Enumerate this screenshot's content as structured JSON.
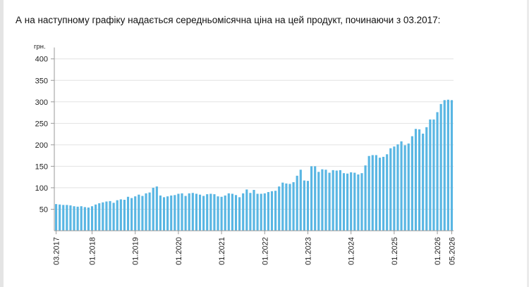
{
  "intro_text": "А на наступному графіку надається середньомісячна ціна на цей продукт, починаючи з 03.2017:",
  "colors": {
    "bar": "#59b6e3",
    "grid": "#e2e2e2",
    "axis": "#999999"
  },
  "chart_data": {
    "type": "bar",
    "unit_label": "грн.",
    "ylim": [
      0,
      420
    ],
    "yticks": [
      50,
      100,
      150,
      200,
      250,
      300,
      350,
      400
    ],
    "grid": true,
    "x_tick_labels": [
      "03.2017",
      "01.2018",
      "01.2019",
      "01.2020",
      "01.2021",
      "01.2022",
      "01.2023",
      "01.2024",
      "01.2025",
      "01.2026",
      "05.2026"
    ],
    "x_tick_month_index": [
      0,
      10,
      22,
      34,
      46,
      58,
      70,
      82,
      94,
      106,
      110
    ],
    "x": [
      "03.2017",
      "04.2017",
      "05.2017",
      "06.2017",
      "07.2017",
      "08.2017",
      "09.2017",
      "10.2017",
      "11.2017",
      "12.2017",
      "01.2018",
      "02.2018",
      "03.2018",
      "04.2018",
      "05.2018",
      "06.2018",
      "07.2018",
      "08.2018",
      "09.2018",
      "10.2018",
      "11.2018",
      "12.2018",
      "01.2019",
      "02.2019",
      "03.2019",
      "04.2019",
      "05.2019",
      "06.2019",
      "07.2019",
      "08.2019",
      "09.2019",
      "10.2019",
      "11.2019",
      "12.2019",
      "01.2020",
      "02.2020",
      "03.2020",
      "04.2020",
      "05.2020",
      "06.2020",
      "07.2020",
      "08.2020",
      "09.2020",
      "10.2020",
      "11.2020",
      "12.2020",
      "01.2021",
      "02.2021",
      "03.2021",
      "04.2021",
      "05.2021",
      "06.2021",
      "07.2021",
      "08.2021",
      "09.2021",
      "10.2021",
      "11.2021",
      "12.2021",
      "01.2022",
      "02.2022",
      "03.2022",
      "04.2022",
      "05.2022",
      "06.2022",
      "07.2022",
      "08.2022",
      "09.2022",
      "10.2022",
      "11.2022",
      "12.2022",
      "01.2023",
      "02.2023",
      "03.2023",
      "04.2023",
      "05.2023",
      "06.2023",
      "07.2023",
      "08.2023",
      "09.2023",
      "10.2023",
      "11.2023",
      "12.2023",
      "01.2024",
      "02.2024",
      "03.2024",
      "04.2024",
      "05.2024",
      "06.2024",
      "07.2024",
      "08.2024",
      "09.2024",
      "10.2024",
      "11.2024",
      "12.2024",
      "01.2025",
      "02.2025",
      "03.2025",
      "04.2025",
      "05.2025",
      "06.2025",
      "07.2025",
      "08.2025",
      "09.2025",
      "10.2025",
      "11.2025",
      "12.2025",
      "01.2026",
      "02.2026",
      "03.2026",
      "04.2026",
      "05.2026"
    ],
    "values": [
      62,
      61,
      60,
      60,
      59,
      57,
      56,
      57,
      55,
      54,
      57,
      61,
      64,
      66,
      68,
      69,
      65,
      71,
      73,
      72,
      79,
      76,
      80,
      84,
      81,
      87,
      89,
      100,
      103,
      82,
      78,
      80,
      82,
      83,
      86,
      87,
      81,
      87,
      88,
      86,
      84,
      81,
      85,
      86,
      85,
      80,
      79,
      82,
      87,
      86,
      83,
      78,
      87,
      96,
      88,
      95,
      86,
      86,
      87,
      90,
      92,
      93,
      103,
      112,
      110,
      109,
      113,
      128,
      142,
      117,
      116,
      150,
      150,
      137,
      143,
      142,
      135,
      141,
      140,
      141,
      134,
      133,
      136,
      135,
      131,
      134,
      152,
      174,
      176,
      176,
      170,
      172,
      178,
      192,
      196,
      201,
      208,
      199,
      203,
      220,
      237,
      236,
      226,
      241,
      259,
      259,
      276,
      295,
      304,
      305,
      304
    ]
  }
}
